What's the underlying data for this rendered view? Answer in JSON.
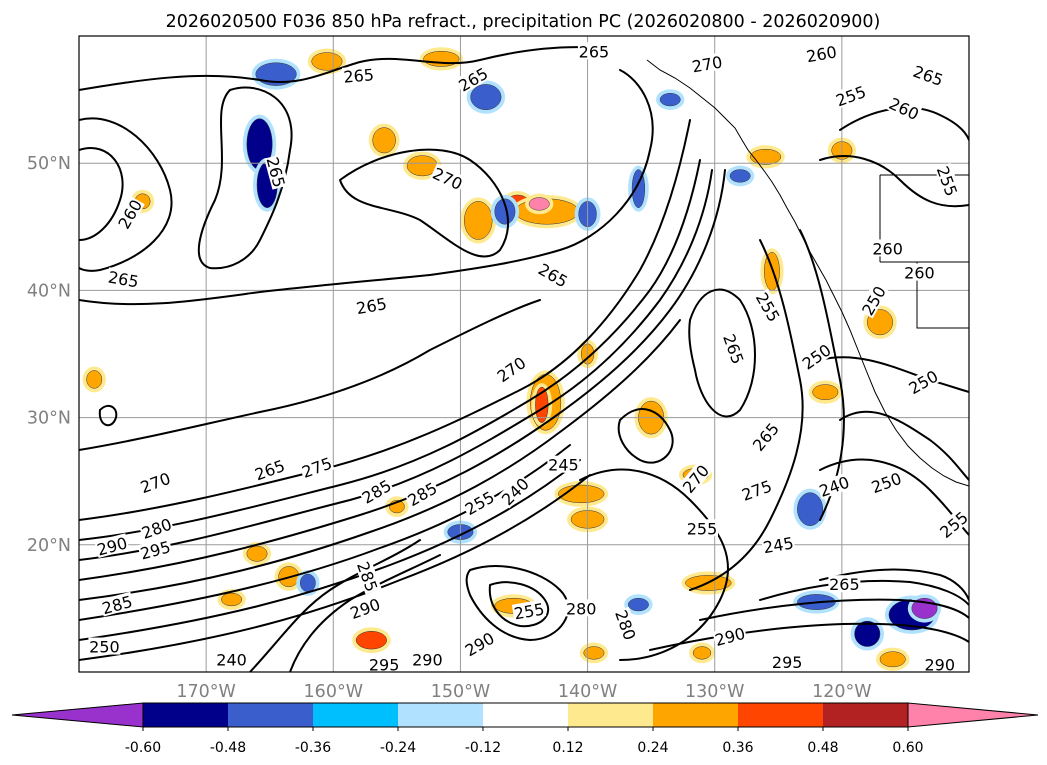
{
  "chart_data": {
    "type": "contour-map",
    "title": "2026020500 F036 850 hPa refract., precipitation PC (2026020800 - 2026020900)",
    "map": {
      "lon_range": [
        -180,
        -110
      ],
      "lat_range": [
        10,
        60
      ],
      "lat_ticks": [
        {
          "lat": 50,
          "label": "50°N"
        },
        {
          "lat": 40,
          "label": "40°N"
        },
        {
          "lat": 30,
          "label": "30°N"
        },
        {
          "lat": 20,
          "label": "20°N"
        }
      ],
      "lon_ticks": [
        {
          "lon": -170,
          "label": "170°W"
        },
        {
          "lon": -160,
          "label": "160°W"
        },
        {
          "lon": -150,
          "label": "150°W"
        },
        {
          "lon": -140,
          "label": "140°W"
        },
        {
          "lon": -130,
          "label": "130°W"
        },
        {
          "lon": -120,
          "label": "120°W"
        }
      ],
      "grid": true
    },
    "contour_labels": [
      {
        "value": "265",
        "lon": -176.5,
        "lat": 40.9,
        "rot": 10
      },
      {
        "value": "260",
        "lon": -176.0,
        "lat": 46.0,
        "rot": -60
      },
      {
        "value": "265",
        "lon": -158.0,
        "lat": 56.9,
        "rot": -5
      },
      {
        "value": "265",
        "lon": -164.5,
        "lat": 49.3,
        "rot": 75
      },
      {
        "value": "265",
        "lon": -157.0,
        "lat": 38.8,
        "rot": -10
      },
      {
        "value": "270",
        "lon": -151.0,
        "lat": 48.8,
        "rot": 25
      },
      {
        "value": "265",
        "lon": -149.0,
        "lat": 56.6,
        "rot": -30
      },
      {
        "value": "265",
        "lon": -139.5,
        "lat": 58.8,
        "rot": 0
      },
      {
        "value": "265",
        "lon": -142.7,
        "lat": 41.2,
        "rot": 30
      },
      {
        "value": "270",
        "lon": -130.6,
        "lat": 57.8,
        "rot": -10
      },
      {
        "value": "260",
        "lon": -121.6,
        "lat": 58.6,
        "rot": -10
      },
      {
        "value": "265",
        "lon": -113.2,
        "lat": 56.9,
        "rot": 20
      },
      {
        "value": "260",
        "lon": -115.1,
        "lat": 54.3,
        "rot": 25
      },
      {
        "value": "255",
        "lon": -119.3,
        "lat": 55.3,
        "rot": -20
      },
      {
        "value": "270",
        "lon": -146.0,
        "lat": 33.8,
        "rot": -35
      },
      {
        "value": "265",
        "lon": -165.0,
        "lat": 25.9,
        "rot": -20
      },
      {
        "value": "275",
        "lon": -161.3,
        "lat": 26.1,
        "rot": -20
      },
      {
        "value": "270",
        "lon": -174.0,
        "lat": 24.9,
        "rot": -20
      },
      {
        "value": "280",
        "lon": -173.9,
        "lat": 21.3,
        "rot": -20
      },
      {
        "value": "290",
        "lon": -177.4,
        "lat": 19.9,
        "rot": -15
      },
      {
        "value": "295",
        "lon": -174.0,
        "lat": 19.6,
        "rot": -15
      },
      {
        "value": "285",
        "lon": -156.6,
        "lat": 24.2,
        "rot": -30
      },
      {
        "value": "285",
        "lon": -153.0,
        "lat": 24.0,
        "rot": -30
      },
      {
        "value": "255",
        "lon": -148.5,
        "lat": 23.3,
        "rot": -30
      },
      {
        "value": "240",
        "lon": -145.7,
        "lat": 24.2,
        "rot": -45
      },
      {
        "value": "245",
        "lon": -141.9,
        "lat": 26.3,
        "rot": 0
      },
      {
        "value": "255",
        "lon": -131.0,
        "lat": 21.3,
        "rot": 0
      },
      {
        "value": "275",
        "lon": -126.7,
        "lat": 24.3,
        "rot": -20
      },
      {
        "value": "270",
        "lon": -131.5,
        "lat": 25.2,
        "rot": -50
      },
      {
        "value": "265",
        "lon": -126.0,
        "lat": 28.5,
        "rot": -50
      },
      {
        "value": "265",
        "lon": -128.5,
        "lat": 35.4,
        "rot": 70
      },
      {
        "value": "255",
        "lon": -125.8,
        "lat": 38.7,
        "rot": 60
      },
      {
        "value": "250",
        "lon": -117.5,
        "lat": 39.2,
        "rot": -60
      },
      {
        "value": "260",
        "lon": -116.4,
        "lat": 43.3,
        "rot": 0
      },
      {
        "value": "260",
        "lon": -113.9,
        "lat": 41.4,
        "rot": 0
      },
      {
        "value": "255",
        "lon": -111.7,
        "lat": 48.6,
        "rot": 70
      },
      {
        "value": "250",
        "lon": -113.6,
        "lat": 32.8,
        "rot": -30
      },
      {
        "value": "250",
        "lon": -122.0,
        "lat": 34.8,
        "rot": -35
      },
      {
        "value": "240",
        "lon": -120.6,
        "lat": 24.6,
        "rot": -20
      },
      {
        "value": "250",
        "lon": -116.5,
        "lat": 24.9,
        "rot": -20
      },
      {
        "value": "255",
        "lon": -111.2,
        "lat": 21.6,
        "rot": -40
      },
      {
        "value": "245",
        "lon": -125.0,
        "lat": 20.0,
        "rot": -10
      },
      {
        "value": "265",
        "lon": -119.8,
        "lat": 16.9,
        "rot": 0
      },
      {
        "value": "280",
        "lon": -140.5,
        "lat": 15.0,
        "rot": 0
      },
      {
        "value": "255",
        "lon": -144.6,
        "lat": 14.8,
        "rot": -10
      },
      {
        "value": "280",
        "lon": -137.0,
        "lat": 13.7,
        "rot": 70
      },
      {
        "value": "290",
        "lon": -148.5,
        "lat": 12.2,
        "rot": -30
      },
      {
        "value": "290",
        "lon": -157.5,
        "lat": 15.0,
        "rot": -20
      },
      {
        "value": "285",
        "lon": -157.3,
        "lat": 17.5,
        "rot": 70
      },
      {
        "value": "290",
        "lon": -152.6,
        "lat": 11.0,
        "rot": 0
      },
      {
        "value": "295",
        "lon": -156.0,
        "lat": 10.6,
        "rot": 0
      },
      {
        "value": "290",
        "lon": -112.3,
        "lat": 10.6,
        "rot": 0
      },
      {
        "value": "295",
        "lon": -124.3,
        "lat": 10.8,
        "rot": 0
      },
      {
        "value": "290",
        "lon": -128.8,
        "lat": 12.8,
        "rot": -15
      },
      {
        "value": "240",
        "lon": -168.0,
        "lat": 11.0,
        "rot": 0
      },
      {
        "value": "250",
        "lon": -178.0,
        "lat": 12.0,
        "rot": 0
      },
      {
        "value": "285",
        "lon": -177.0,
        "lat": 15.3,
        "rot": -15
      }
    ],
    "precipitation_pc": {
      "colorbar": {
        "ticks": [
          "-0.60",
          "-0.48",
          "-0.36",
          "-0.24",
          "-0.12",
          "0.12",
          "0.24",
          "0.36",
          "0.48",
          "0.60"
        ],
        "colors": [
          "#9932cc",
          "#00008b",
          "#3a5fcd",
          "#00bfff",
          "#b0e2ff",
          "#ffffff",
          "#ffe98e",
          "#ffa500",
          "#ff4500",
          "#b22222",
          "#ff82ab"
        ],
        "extend": "both"
      },
      "patches": [
        {
          "lon": -165.8,
          "lat": 51.5,
          "rx": 1.0,
          "ry": 2.0,
          "level": -0.48
        },
        {
          "lon": -165.2,
          "lat": 48.3,
          "rx": 0.8,
          "ry": 1.8,
          "level": -0.48
        },
        {
          "lon": -164.5,
          "lat": 57.0,
          "rx": 1.6,
          "ry": 0.9,
          "level": -0.36
        },
        {
          "lon": -156.0,
          "lat": 51.8,
          "rx": 0.9,
          "ry": 1.0,
          "level": 0.36
        },
        {
          "lon": -151.5,
          "lat": 58.2,
          "rx": 1.4,
          "ry": 0.6,
          "level": 0.36
        },
        {
          "lon": -160.5,
          "lat": 58.0,
          "rx": 1.2,
          "ry": 0.7,
          "level": 0.36
        },
        {
          "lon": -148.0,
          "lat": 55.2,
          "rx": 1.2,
          "ry": 1.0,
          "level": -0.36
        },
        {
          "lon": -153.0,
          "lat": 49.8,
          "rx": 1.2,
          "ry": 0.8,
          "level": 0.36
        },
        {
          "lon": -148.6,
          "lat": 45.5,
          "rx": 1.1,
          "ry": 1.5,
          "level": 0.36
        },
        {
          "lon": -145.5,
          "lat": 46.7,
          "rx": 1.0,
          "ry": 0.8,
          "level": 0.48
        },
        {
          "lon": -143.2,
          "lat": 46.2,
          "rx": 2.5,
          "ry": 1.0,
          "level": 0.36
        },
        {
          "lon": -143.8,
          "lat": 46.8,
          "rx": 0.8,
          "ry": 0.5,
          "level": 0.6
        },
        {
          "lon": -146.5,
          "lat": 46.2,
          "rx": 0.8,
          "ry": 1.0,
          "level": -0.36
        },
        {
          "lon": -140.0,
          "lat": 46.0,
          "rx": 0.7,
          "ry": 1.0,
          "level": -0.36
        },
        {
          "lon": -143.3,
          "lat": 31.2,
          "rx": 1.2,
          "ry": 2.2,
          "level": 0.36
        },
        {
          "lon": -143.6,
          "lat": 31.0,
          "rx": 0.5,
          "ry": 1.4,
          "level": 0.48
        },
        {
          "lon": -135.0,
          "lat": 30.0,
          "rx": 1.0,
          "ry": 1.3,
          "level": 0.36
        },
        {
          "lon": -140.5,
          "lat": 24.0,
          "rx": 1.8,
          "ry": 0.7,
          "level": 0.36
        },
        {
          "lon": -140.0,
          "lat": 22.0,
          "rx": 1.3,
          "ry": 0.7,
          "level": 0.36
        },
        {
          "lon": -122.5,
          "lat": 22.8,
          "rx": 1.0,
          "ry": 1.3,
          "level": -0.36
        },
        {
          "lon": -117.0,
          "lat": 37.5,
          "rx": 1.0,
          "ry": 1.0,
          "level": 0.36
        },
        {
          "lon": -121.3,
          "lat": 32.0,
          "rx": 1.0,
          "ry": 0.6,
          "level": 0.36
        },
        {
          "lon": -125.5,
          "lat": 41.5,
          "rx": 0.6,
          "ry": 1.5,
          "level": 0.36
        },
        {
          "lon": -114.5,
          "lat": 14.5,
          "rx": 1.8,
          "ry": 1.2,
          "level": -0.48
        },
        {
          "lon": -113.5,
          "lat": 15.0,
          "rx": 1.0,
          "ry": 0.8,
          "level": -0.6
        },
        {
          "lon": -118.0,
          "lat": 13.0,
          "rx": 1.0,
          "ry": 1.0,
          "level": -0.48
        },
        {
          "lon": -122.0,
          "lat": 15.5,
          "rx": 1.5,
          "ry": 0.6,
          "level": -0.36
        },
        {
          "lon": -130.5,
          "lat": 17.0,
          "rx": 1.8,
          "ry": 0.6,
          "level": 0.36
        },
        {
          "lon": -145.8,
          "lat": 15.2,
          "rx": 1.5,
          "ry": 0.6,
          "level": 0.36
        },
        {
          "lon": -136.0,
          "lat": 15.3,
          "rx": 0.8,
          "ry": 0.5,
          "level": -0.36
        },
        {
          "lon": -163.5,
          "lat": 17.5,
          "rx": 0.8,
          "ry": 0.8,
          "level": 0.36
        },
        {
          "lon": -157.0,
          "lat": 12.5,
          "rx": 1.2,
          "ry": 0.7,
          "level": 0.48
        },
        {
          "lon": -150.0,
          "lat": 21.0,
          "rx": 1.0,
          "ry": 0.6,
          "level": -0.36
        },
        {
          "lon": -166.0,
          "lat": 19.3,
          "rx": 0.8,
          "ry": 0.6,
          "level": 0.36
        },
        {
          "lon": -131.5,
          "lat": 25.5,
          "rx": 1.0,
          "ry": 0.5,
          "level": 0.36
        },
        {
          "lon": -178.8,
          "lat": 33.0,
          "rx": 0.6,
          "ry": 0.7,
          "level": 0.36
        },
        {
          "lon": -175.0,
          "lat": 47.0,
          "rx": 0.6,
          "ry": 0.6,
          "level": 0.36
        },
        {
          "lon": -162.0,
          "lat": 17.0,
          "rx": 0.6,
          "ry": 0.7,
          "level": -0.36
        },
        {
          "lon": -168.0,
          "lat": 15.7,
          "rx": 0.8,
          "ry": 0.5,
          "level": 0.36
        },
        {
          "lon": -116.0,
          "lat": 11.0,
          "rx": 1.0,
          "ry": 0.6,
          "level": 0.36
        },
        {
          "lon": -126.0,
          "lat": 50.5,
          "rx": 1.2,
          "ry": 0.6,
          "level": 0.36
        },
        {
          "lon": -120.0,
          "lat": 51.0,
          "rx": 0.8,
          "ry": 0.7,
          "level": 0.36
        },
        {
          "lon": -133.5,
          "lat": 55.0,
          "rx": 0.8,
          "ry": 0.5,
          "level": -0.36
        },
        {
          "lon": -136.0,
          "lat": 48.0,
          "rx": 0.5,
          "ry": 1.5,
          "level": -0.36
        },
        {
          "lon": -128.0,
          "lat": 49.0,
          "rx": 0.8,
          "ry": 0.5,
          "level": -0.36
        },
        {
          "lon": -140.0,
          "lat": 35.0,
          "rx": 0.5,
          "ry": 0.8,
          "level": 0.36
        },
        {
          "lon": -155.0,
          "lat": 23.0,
          "rx": 0.6,
          "ry": 0.5,
          "level": 0.36
        },
        {
          "lon": -139.5,
          "lat": 11.5,
          "rx": 0.8,
          "ry": 0.5,
          "level": 0.36
        },
        {
          "lon": -131.0,
          "lat": 11.5,
          "rx": 0.7,
          "ry": 0.5,
          "level": 0.36
        }
      ]
    }
  }
}
